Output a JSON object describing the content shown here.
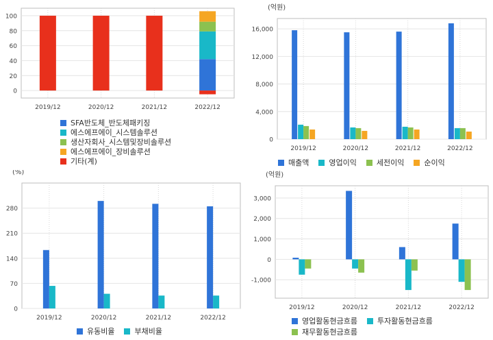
{
  "chart_data": [
    {
      "id": "segments",
      "type": "bar",
      "stacked": true,
      "categories": [
        "2019/12",
        "2020/12",
        "2021/12",
        "2022/12"
      ],
      "ylim": [
        -10,
        110
      ],
      "yticks": [
        0,
        20,
        40,
        60,
        80,
        100
      ],
      "series": [
        {
          "name": "SFA반도체_반도체패키징",
          "color": "#2f74d8",
          "values": [
            0,
            0,
            0,
            42
          ]
        },
        {
          "name": "에스에프에이_시스템솔루션",
          "color": "#19b8c8",
          "values": [
            0,
            0,
            0,
            37
          ]
        },
        {
          "name": "생산자회사_시스템및장비솔루션",
          "color": "#8cc150",
          "values": [
            0,
            0,
            0,
            13
          ]
        },
        {
          "name": "에스에프에이_장비솔루션",
          "color": "#f5a623",
          "values": [
            0,
            0,
            0,
            14
          ]
        },
        {
          "name": "기타(계)",
          "color": "#e8301c",
          "values": [
            100,
            100,
            100,
            -5
          ]
        }
      ],
      "grid": true
    },
    {
      "id": "income",
      "type": "bar",
      "unit": "(억원)",
      "categories": [
        "2019/12",
        "2020/12",
        "2021/12",
        "2022/12"
      ],
      "ylim": [
        0,
        17500
      ],
      "yticks": [
        0,
        4000,
        8000,
        12000,
        16000
      ],
      "ytick_labels": [
        "0",
        "4,000",
        "8,000",
        "12,000",
        "16,000"
      ],
      "series": [
        {
          "name": "매출액",
          "color": "#2f74d8",
          "values": [
            15800,
            15500,
            15600,
            16800
          ]
        },
        {
          "name": "영업이익",
          "color": "#19b8c8",
          "values": [
            2100,
            1700,
            1800,
            1600
          ]
        },
        {
          "name": "세전이익",
          "color": "#8cc150",
          "values": [
            1900,
            1600,
            1700,
            1600
          ]
        },
        {
          "name": "순이익",
          "color": "#f5a623",
          "values": [
            1400,
            1200,
            1400,
            1100
          ]
        }
      ],
      "legend": "bottom",
      "grid": true
    },
    {
      "id": "ratios",
      "type": "bar",
      "unit": "(%)",
      "categories": [
        "2019/12",
        "2020/12",
        "2021/12",
        "2022/12"
      ],
      "ylim": [
        0,
        350
      ],
      "yticks": [
        0,
        70,
        140,
        210,
        280
      ],
      "ytick_labels": [
        "0",
        "70",
        "140",
        "210",
        "280"
      ],
      "series": [
        {
          "name": "유동비율",
          "color": "#2f74d8",
          "values": [
            163,
            300,
            292,
            285
          ]
        },
        {
          "name": "부채비율",
          "color": "#19b8c8",
          "values": [
            63,
            41,
            36,
            36
          ]
        }
      ],
      "legend": "bottom",
      "grid": true
    },
    {
      "id": "cashflow",
      "type": "bar",
      "unit": "(억원)",
      "categories": [
        "2019/12",
        "2020/12",
        "2021/12",
        "2022/12"
      ],
      "ylim": [
        -1900,
        3600
      ],
      "yticks": [
        -1000,
        0,
        1000,
        2000,
        3000
      ],
      "ytick_labels": [
        "-1,000",
        "0",
        "1,000",
        "2,000",
        "3,000"
      ],
      "series": [
        {
          "name": "영업활동현금흐름",
          "color": "#2f74d8",
          "values": [
            80,
            3350,
            600,
            1750
          ]
        },
        {
          "name": "투자활동현금흐름",
          "color": "#19b8c8",
          "values": [
            -750,
            -450,
            -1500,
            -1100
          ]
        },
        {
          "name": "재무활동현금흐름",
          "color": "#8cc150",
          "values": [
            -450,
            -650,
            -550,
            -1500
          ]
        }
      ],
      "legend": "bottom",
      "grid": true
    }
  ]
}
